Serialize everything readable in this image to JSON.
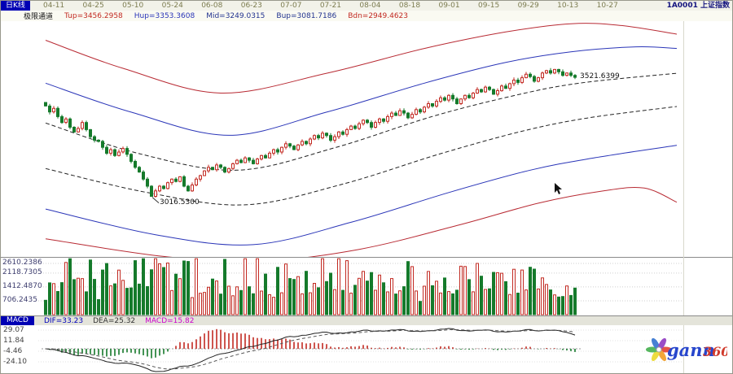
{
  "header": {
    "mode_label": "日K线",
    "symbol_code": "1A0001",
    "symbol_name": "上证指数"
  },
  "indicator_header": {
    "name": "极限通道",
    "values": [
      {
        "text": "Tup=3456.2958",
        "color": "#c22a22"
      },
      {
        "text": "Hup=3353.3608",
        "color": "#2a35b8"
      },
      {
        "text": "Mid=3249.0315",
        "color": "#22338f"
      },
      {
        "text": "Bup=3081.7186",
        "color": "#22338f"
      },
      {
        "text": "Bdn=2949.4623",
        "color": "#c22a22"
      }
    ]
  },
  "macd_strip": {
    "title": "MACD",
    "items": [
      {
        "text": "DIF=33.23",
        "color": "#0000bb"
      },
      {
        "text": "DEA=25.32",
        "color": "#333333"
      },
      {
        "text": "MACD=15.82",
        "color": "#cc00cc"
      }
    ]
  },
  "logo": {
    "brand": "gann",
    "suffix": "360"
  },
  "chart_data": [
    {
      "type": "candlestick",
      "title": "日K线 1A0001 上证指数",
      "x_tick_labels": [
        "04-11",
        "04-25",
        "05-10",
        "05-24",
        "06-08",
        "06-23",
        "07-07",
        "07-21",
        "08-04",
        "08-18",
        "09-01",
        "09-15",
        "09-29",
        "10-13",
        "10-27"
      ],
      "ylim": [
        2760,
        3760
      ],
      "closes": [
        3400,
        3375,
        3390,
        3355,
        3330,
        3345,
        3310,
        3290,
        3305,
        3330,
        3300,
        3270,
        3255,
        3250,
        3225,
        3200,
        3215,
        3190,
        3205,
        3220,
        3195,
        3165,
        3140,
        3120,
        3090,
        3060,
        3017,
        3040,
        3060,
        3050,
        3075,
        3090,
        3080,
        3100,
        3060,
        3040,
        3065,
        3090,
        3105,
        3125,
        3140,
        3130,
        3150,
        3140,
        3120,
        3135,
        3155,
        3170,
        3160,
        3180,
        3170,
        3155,
        3175,
        3190,
        3180,
        3200,
        3215,
        3205,
        3225,
        3240,
        3230,
        3215,
        3235,
        3250,
        3240,
        3260,
        3275,
        3265,
        3285,
        3275,
        3255,
        3270,
        3290,
        3280,
        3300,
        3315,
        3305,
        3325,
        3340,
        3330,
        3310,
        3330,
        3345,
        3335,
        3355,
        3370,
        3360,
        3380,
        3370,
        3350,
        3365,
        3385,
        3375,
        3395,
        3410,
        3400,
        3420,
        3435,
        3425,
        3445,
        3430,
        3410,
        3430,
        3445,
        3435,
        3455,
        3470,
        3460,
        3480,
        3470,
        3450,
        3465,
        3485,
        3475,
        3495,
        3510,
        3500,
        3520,
        3535,
        3525,
        3505,
        3520,
        3540,
        3550,
        3540,
        3555,
        3545,
        3530,
        3540,
        3530,
        3521.64
      ],
      "low_point": {
        "index": 26,
        "price": 3016.53,
        "label": "3016.5300"
      },
      "last_close": 3521.6399,
      "last_close_label": "3521.6399",
      "channels": [
        {
          "name": "Tup",
          "color": "#b82a33",
          "style": "solid",
          "points": [
            [
              0,
              3679
            ],
            [
              19,
              3560
            ],
            [
              43,
              3455
            ],
            [
              69,
              3539
            ],
            [
              93,
              3644
            ],
            [
              113,
              3714
            ],
            [
              129,
              3749
            ],
            [
              141,
              3742
            ],
            [
              155,
              3705
            ]
          ]
        },
        {
          "name": "Hup",
          "color": "#2a35b8",
          "style": "solid",
          "points": [
            [
              0,
              3497
            ],
            [
              21,
              3374
            ],
            [
              45,
              3276
            ],
            [
              69,
              3374
            ],
            [
              93,
              3497
            ],
            [
              113,
              3585
            ],
            [
              129,
              3630
            ],
            [
              145,
              3651
            ],
            [
              155,
              3644
            ]
          ]
        },
        {
          "name": "Mid",
          "color": "#222222",
          "style": "dashed",
          "points": [
            [
              0,
              3328
            ],
            [
              23,
              3198
            ],
            [
              47,
              3128
            ],
            [
              71,
              3223
            ],
            [
              95,
              3356
            ],
            [
              115,
              3444
            ],
            [
              131,
              3497
            ],
            [
              155,
              3539
            ]
          ]
        },
        {
          "name": "Mid2",
          "color": "#222222",
          "style": "dashed",
          "points": [
            [
              0,
              3135
            ],
            [
              25,
              3033
            ],
            [
              49,
              2981
            ],
            [
              73,
              3069
            ],
            [
              97,
              3198
            ],
            [
              117,
              3293
            ],
            [
              133,
              3349
            ],
            [
              155,
              3398
            ]
          ]
        },
        {
          "name": "Bup",
          "color": "#2a35b8",
          "style": "solid",
          "points": [
            [
              0,
              2963
            ],
            [
              27,
              2854
            ],
            [
              51,
              2812
            ],
            [
              75,
              2907
            ],
            [
              99,
              3033
            ],
            [
              119,
              3128
            ],
            [
              135,
              3181
            ],
            [
              155,
              3233
            ]
          ]
        },
        {
          "name": "Bdn",
          "color": "#b82a33",
          "style": "solid",
          "points": [
            [
              0,
              2837
            ],
            [
              29,
              2762
            ],
            [
              53,
              2742
            ],
            [
              77,
              2792
            ],
            [
              101,
              2893
            ],
            [
              121,
              2988
            ],
            [
              137,
              3040
            ],
            [
              147,
              3052
            ],
            [
              155,
              2992
            ]
          ]
        }
      ]
    },
    {
      "type": "bar",
      "name": "volume",
      "ymax": 2900,
      "ylabels": [
        "2610.2386",
        "2118.7305",
        "1412.4870",
        "706.2435"
      ],
      "colors": {
        "up": "#c22a22",
        "down": "#157a2b"
      }
    },
    {
      "type": "line",
      "name": "MACD",
      "dif": 33.23,
      "dea": 25.32,
      "macd": 15.82,
      "ylabels": [
        "29.07",
        "11.84",
        "-4.46",
        "-24.10"
      ]
    }
  ]
}
